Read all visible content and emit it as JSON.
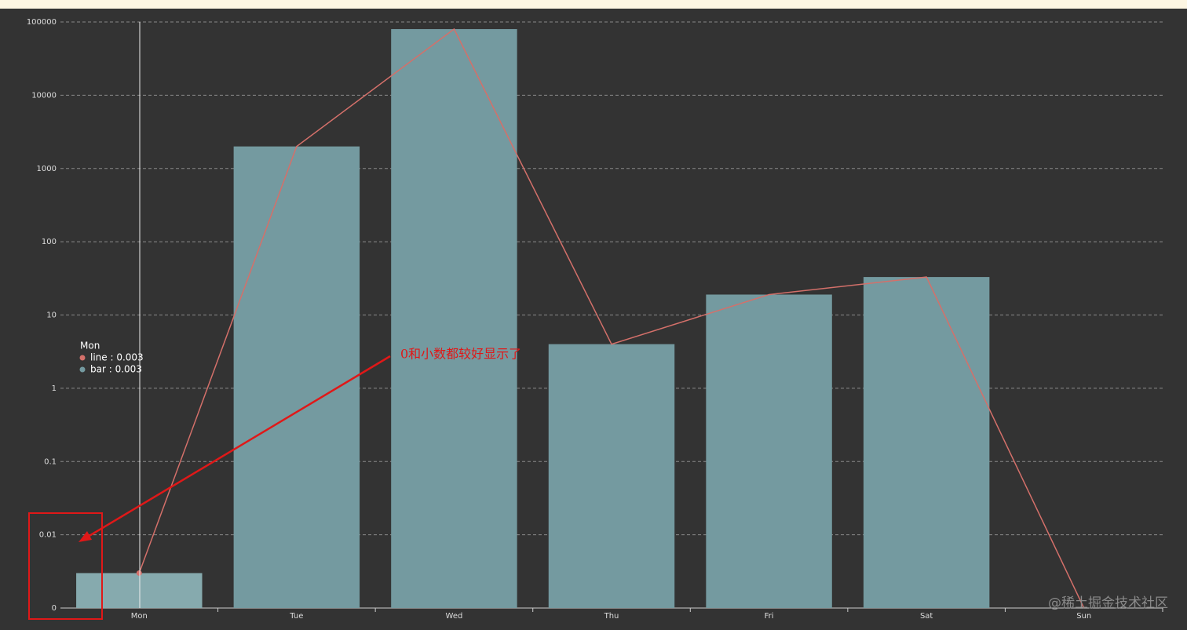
{
  "chart_data": {
    "type": "bar",
    "categories": [
      "Mon",
      "Tue",
      "Wed",
      "Thu",
      "Fri",
      "Sat",
      "Sun"
    ],
    "series": [
      {
        "type": "bar",
        "color": "#749aa0",
        "values": [
          0.003,
          2000,
          80000,
          4,
          19,
          33,
          0
        ]
      },
      {
        "type": "line",
        "color": "#d4706a",
        "values": [
          0.003,
          2000,
          80000,
          4,
          19,
          33,
          0
        ]
      }
    ],
    "log_scale": true,
    "ylim": [
      0,
      100000
    ],
    "yticks": [
      0,
      0.01,
      0.1,
      1,
      10,
      100,
      1000,
      10000,
      100000
    ],
    "grid": true,
    "tooltip": {
      "title": "Mon",
      "items": [
        "line : 0.003",
        "bar : 0.003"
      ]
    },
    "annotation": "0和小数都较好显示了",
    "watermark": "@稀土掘金技术社区"
  }
}
